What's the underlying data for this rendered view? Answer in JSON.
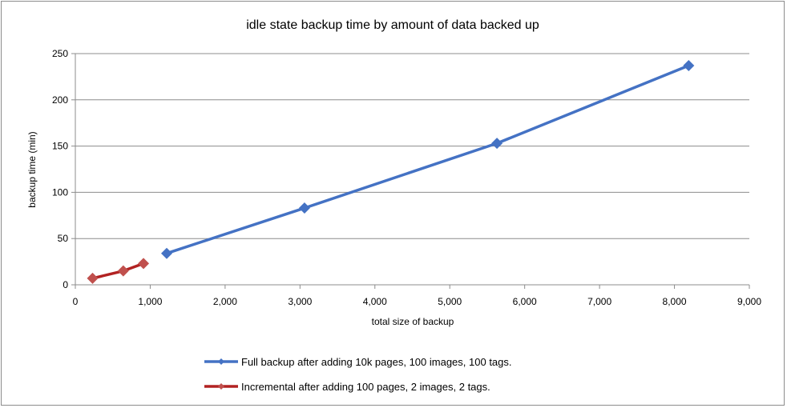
{
  "chart_data": {
    "type": "line",
    "title": "idle state backup time by amount of data backed up",
    "xlabel": "total size of backup",
    "ylabel": "backup time  (min)",
    "xlim": [
      0,
      9000
    ],
    "ylim": [
      0,
      250
    ],
    "x_ticks": [
      0,
      1000,
      2000,
      3000,
      4000,
      5000,
      6000,
      7000,
      8000,
      9000
    ],
    "x_tick_labels": [
      "0",
      "1,000",
      "2,000",
      "3,000",
      "4,000",
      "5,000",
      "6,000",
      "7,000",
      "8,000",
      "9,000"
    ],
    "y_ticks": [
      0,
      50,
      100,
      150,
      200,
      250
    ],
    "y_tick_labels": [
      "0",
      "50",
      "100",
      "150",
      "200",
      "250"
    ],
    "grid": "horizontal",
    "legend_position": "bottom",
    "series": [
      {
        "name": "Full backup after adding 10k pages, 100 images, 100 tags.",
        "color": "#4472C4",
        "marker_color": "#4472C4",
        "x": [
          1220,
          3060,
          5630,
          8190
        ],
        "y": [
          34,
          83,
          153,
          237
        ]
      },
      {
        "name": "Incremental after adding 100 pages, 2 images, 2 tags.",
        "color": "#B22222",
        "marker_color": "#C0504D",
        "x": [
          230,
          640,
          910
        ],
        "y": [
          7,
          15,
          23
        ]
      }
    ]
  }
}
